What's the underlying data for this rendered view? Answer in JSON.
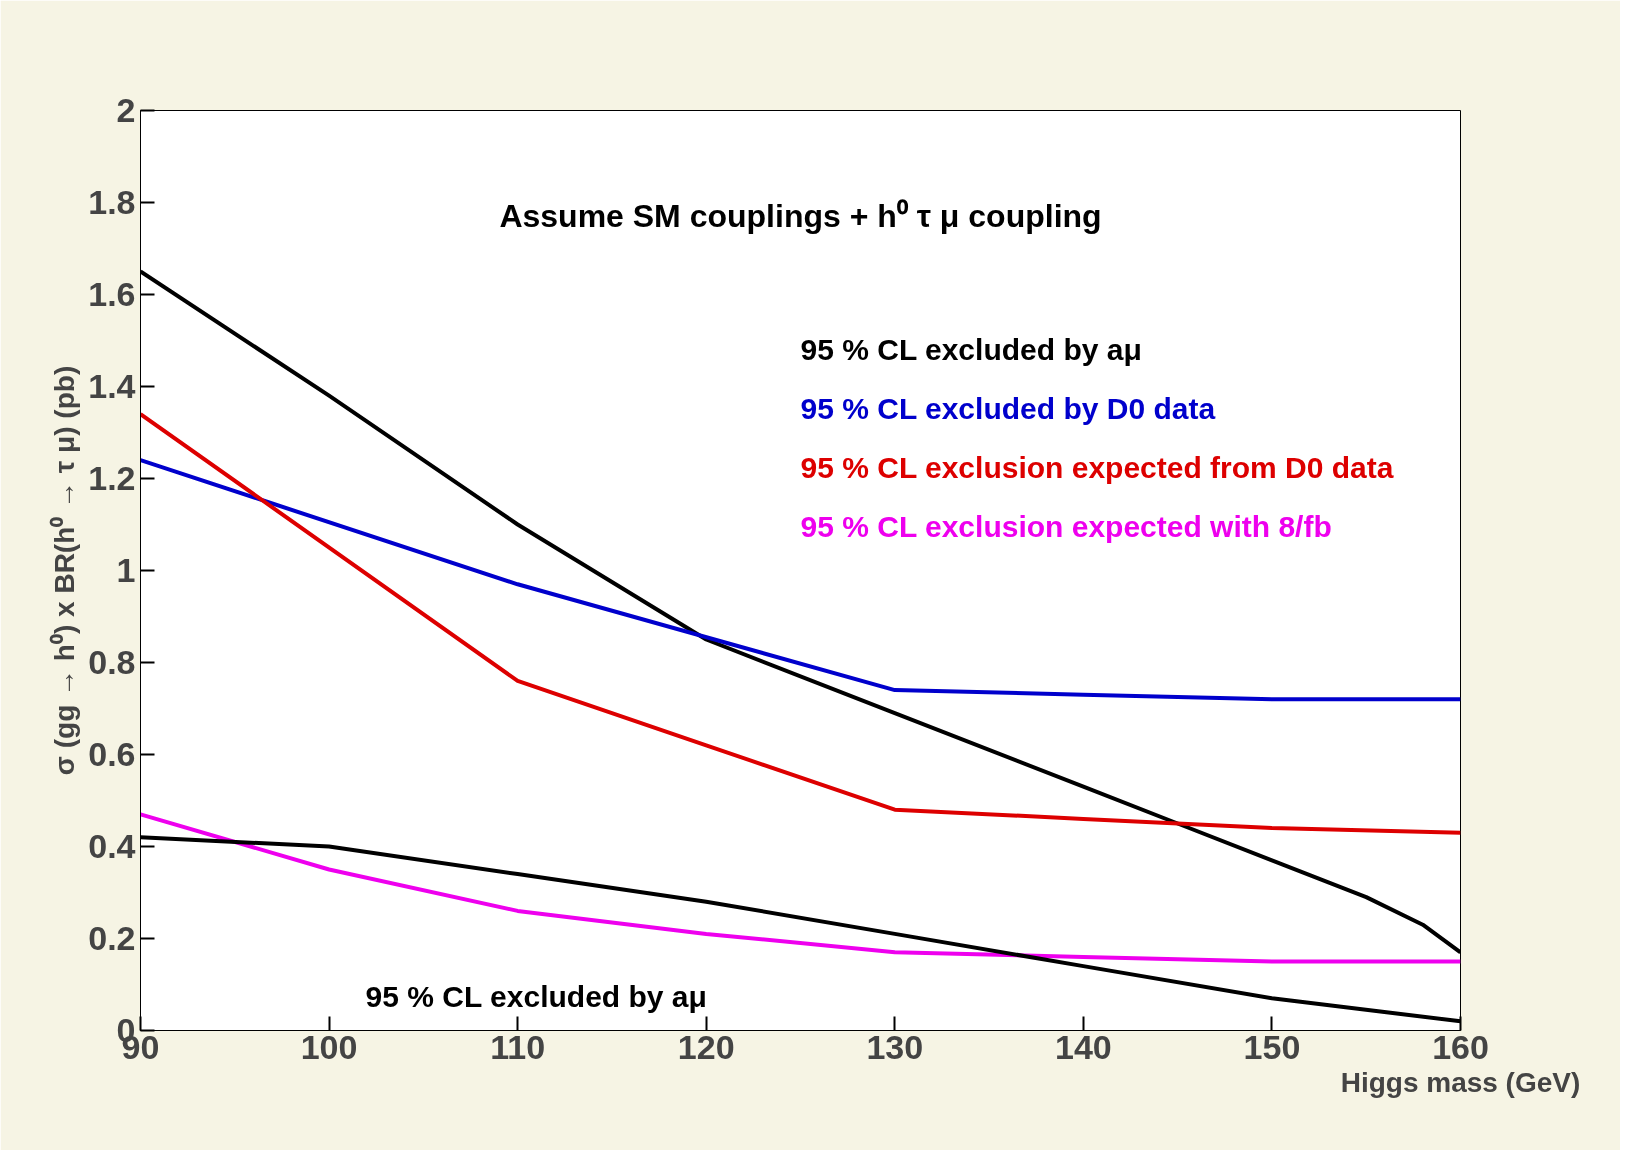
{
  "chart_data": {
    "type": "line",
    "xlabel": "Higgs mass (GeV)",
    "ylabel": "σ (gg → h⁰) x BR(h⁰ → τ μ) (pb)",
    "x": [
      90,
      100,
      110,
      120,
      130,
      140,
      145,
      150,
      155,
      158,
      160
    ],
    "series": [
      {
        "name": "95 % CL excluded by aμ",
        "color": "#000000",
        "values": [
          1.65,
          1.38,
          1.1,
          0.85,
          0.69,
          0.53,
          0.45,
          0.37,
          0.29,
          0.23,
          0.17
        ]
      },
      {
        "name": "95 % CL excluded by D0 data",
        "color": "#0000cc",
        "x": [
          90,
          110,
          130,
          140,
          150,
          160
        ],
        "values": [
          1.24,
          0.97,
          0.74,
          0.73,
          0.72,
          0.72
        ]
      },
      {
        "name": "95 % CL exclusion expected from D0 data",
        "color": "#dd0000",
        "x": [
          90,
          110,
          120,
          130,
          140,
          150,
          160
        ],
        "values": [
          1.34,
          0.76,
          0.62,
          0.48,
          0.46,
          0.44,
          0.43
        ]
      },
      {
        "name": "95 % CL exclusion expected with 8/fb",
        "color": "#ee00ee",
        "x": [
          90,
          100,
          110,
          120,
          130,
          140,
          150,
          160
        ],
        "values": [
          0.47,
          0.35,
          0.26,
          0.21,
          0.17,
          0.16,
          0.15,
          0.15
        ]
      },
      {
        "color": "#000000",
        "x": [
          90,
          100,
          110,
          120,
          130,
          140,
          150,
          160
        ],
        "values": [
          0.42,
          0.4,
          0.34,
          0.28,
          0.21,
          0.14,
          0.07,
          0.02
        ]
      }
    ],
    "annotations": [
      "Assume SM couplings + h⁰ τ μ coupling",
      "95 % CL excluded by aμ"
    ],
    "xlim": [
      90,
      160
    ],
    "ylim": [
      0,
      2
    ],
    "xticks": [
      90,
      100,
      110,
      120,
      130,
      140,
      150,
      160
    ],
    "yticks": [
      0,
      0.2,
      0.4,
      0.6,
      0.8,
      1,
      1.2,
      1.4,
      1.6,
      1.8,
      2
    ],
    "grid": false,
    "legend": "right",
    "marker": "none",
    "line_style": "solid"
  }
}
